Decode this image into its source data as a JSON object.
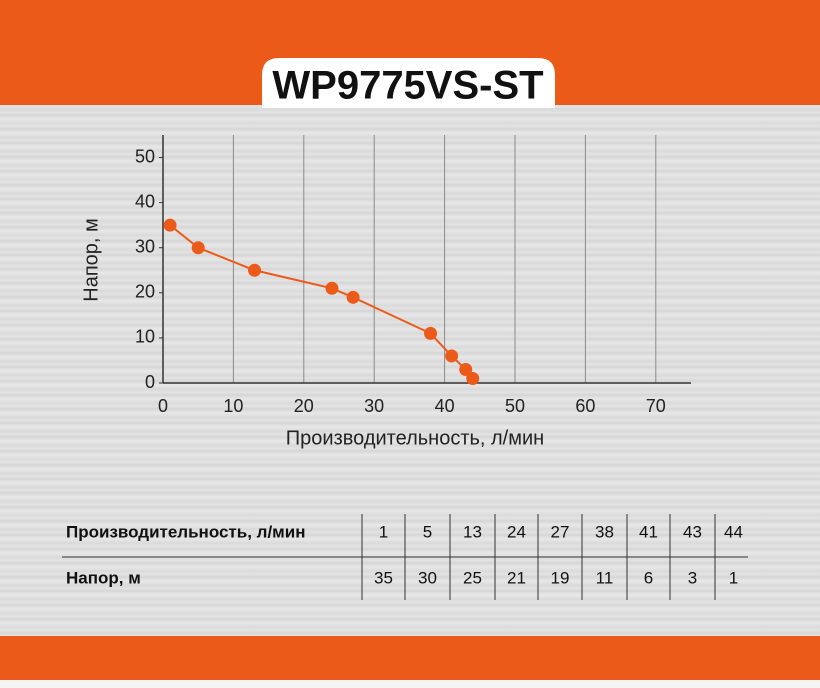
{
  "chart_data": {
    "type": "line",
    "title": "WP9775VS-ST",
    "x_label": "Производительность, л/мин",
    "y_label": "Напор, м",
    "x": [
      1,
      5,
      13,
      24,
      27,
      38,
      41,
      43,
      44
    ],
    "series": [
      {
        "name": "Напор",
        "color": "#ec5a1a",
        "values": [
          35,
          30,
          25,
          21,
          19,
          11,
          6,
          3,
          1
        ]
      }
    ],
    "xlim": [
      0,
      75
    ],
    "ylim": [
      0,
      55
    ],
    "xticks": [
      0,
      10,
      20,
      30,
      40,
      50,
      60,
      70
    ],
    "yticks": [
      0,
      10,
      20,
      30,
      40,
      50
    ],
    "grid": true
  },
  "table": {
    "row_labels": [
      "Производительность, л/мин",
      "Напор, м"
    ]
  }
}
